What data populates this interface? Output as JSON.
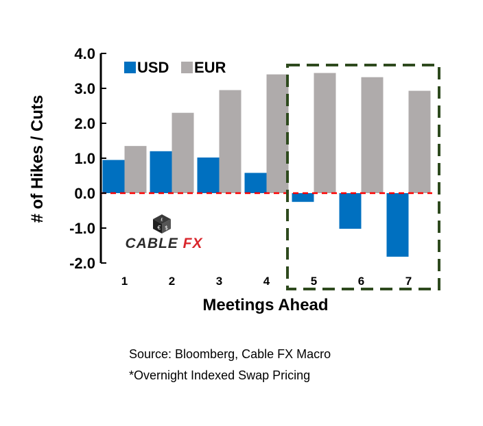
{
  "chart_data": {
    "type": "bar",
    "categories": [
      "1",
      "2",
      "3",
      "4",
      "5",
      "6",
      "7"
    ],
    "series": [
      {
        "name": "USD",
        "color": "#0070C0",
        "values": [
          0.95,
          1.2,
          1.02,
          0.58,
          -0.25,
          -1.02,
          -1.82
        ]
      },
      {
        "name": "EUR",
        "color": "#AFABAB",
        "values": [
          1.35,
          2.3,
          2.95,
          3.4,
          3.44,
          3.32,
          2.93
        ]
      }
    ],
    "ylim": [
      -2.0,
      4.0
    ],
    "yticks": [
      "4.0",
      "3.0",
      "2.0",
      "1.0",
      "0.0",
      "-1.0",
      "-2.0"
    ],
    "xlabel": "Meetings Ahead",
    "ylabel": "# of Hikes / Cuts",
    "legend_position": "top-left",
    "grid": false,
    "zero_line_color": "#FF0000",
    "highlight": {
      "from_category": "5",
      "to_category": "7",
      "style": "dashed box",
      "color": "#2E4A1E"
    }
  },
  "logo": {
    "word1": "CABLE",
    "word2": "FX",
    "accent_color": "#d9262c"
  },
  "notes": {
    "source": "Source: Bloomberg, Cable FX Macro",
    "footnote": "*Overnight Indexed Swap Pricing"
  }
}
